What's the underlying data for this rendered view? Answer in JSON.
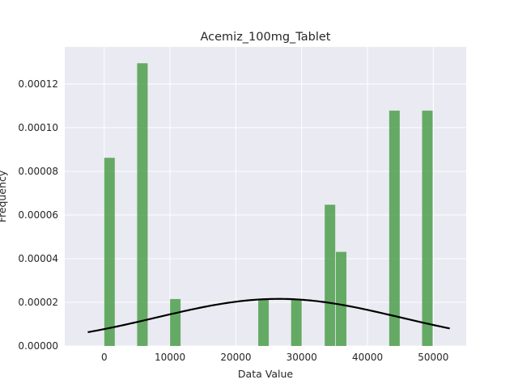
{
  "chart_data": {
    "type": "bar",
    "title": "Acemiz_100mg_Tablet",
    "xlabel": "Data Value",
    "ylabel": "Frequency",
    "xlim": [
      -6000,
      55000
    ],
    "ylim": [
      0,
      0.000137
    ],
    "grid": true,
    "xticks": [
      0,
      10000,
      20000,
      30000,
      40000,
      50000
    ],
    "xtick_labels": [
      "0",
      "10000",
      "20000",
      "30000",
      "40000",
      "50000"
    ],
    "yticks": [
      0,
      2e-05,
      4e-05,
      6e-05,
      8e-05,
      0.0001,
      0.00012
    ],
    "ytick_labels": [
      "0.00000",
      "0.00002",
      "0.00004",
      "0.00006",
      "0.00008",
      "0.00010",
      "0.00012"
    ],
    "bars": [
      {
        "x0": 0,
        "x1": 1600,
        "value": 8.62e-05
      },
      {
        "x0": 5000,
        "x1": 6600,
        "value": 0.0001295
      },
      {
        "x0": 10000,
        "x1": 11600,
        "value": 2.15e-05
      },
      {
        "x0": 23400,
        "x1": 25000,
        "value": 2.15e-05
      },
      {
        "x0": 28400,
        "x1": 30000,
        "value": 2.15e-05
      },
      {
        "x0": 33500,
        "x1": 35100,
        "value": 6.47e-05
      },
      {
        "x0": 35200,
        "x1": 36800,
        "value": 4.31e-05
      },
      {
        "x0": 43300,
        "x1": 44900,
        "value": 0.0001078
      },
      {
        "x0": 48300,
        "x1": 49900,
        "value": 0.0001078
      }
    ],
    "bar_color": "#4c9f4c",
    "curve": {
      "type": "normal-pdf",
      "mean": 26500,
      "std": 18500,
      "x_range": [
        -2500,
        52500
      ],
      "color": "#000000"
    }
  }
}
